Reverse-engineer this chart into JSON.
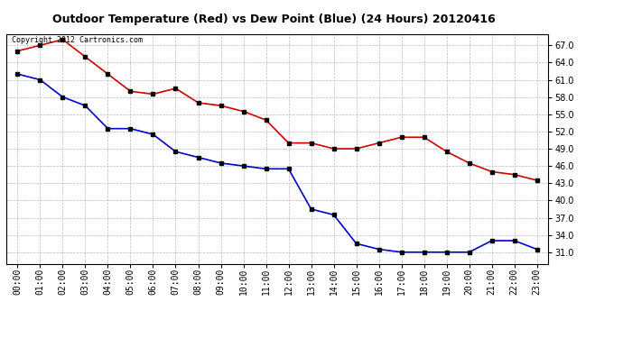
{
  "title": "Outdoor Temperature (Red) vs Dew Point (Blue) (24 Hours) 20120416",
  "copyright_text": "Copyright 2012 Cartronics.com",
  "x_labels": [
    "00:00",
    "01:00",
    "02:00",
    "03:00",
    "04:00",
    "05:00",
    "06:00",
    "07:00",
    "08:00",
    "09:00",
    "10:00",
    "11:00",
    "12:00",
    "13:00",
    "14:00",
    "15:00",
    "16:00",
    "17:00",
    "18:00",
    "19:00",
    "20:00",
    "21:00",
    "22:00",
    "23:00"
  ],
  "temp_red": [
    66.0,
    67.0,
    68.0,
    65.0,
    62.0,
    59.0,
    58.5,
    59.5,
    57.0,
    56.5,
    55.5,
    54.0,
    50.0,
    50.0,
    49.0,
    49.0,
    50.0,
    51.0,
    51.0,
    48.5,
    46.5,
    45.0,
    44.5,
    43.5
  ],
  "dew_blue": [
    62.0,
    61.0,
    58.0,
    56.5,
    52.5,
    52.5,
    51.5,
    48.5,
    47.5,
    46.5,
    46.0,
    45.5,
    45.5,
    38.5,
    37.5,
    32.5,
    31.5,
    31.0,
    31.0,
    31.0,
    31.0,
    33.0,
    33.0,
    31.5
  ],
  "ylim_min": 29.0,
  "ylim_max": 69.0,
  "yticks": [
    31.0,
    34.0,
    37.0,
    40.0,
    43.0,
    46.0,
    49.0,
    52.0,
    55.0,
    58.0,
    61.0,
    64.0,
    67.0
  ],
  "red_color": "#cc0000",
  "blue_color": "#0000cc",
  "bg_color": "#ffffff",
  "plot_bg_color": "#ffffff",
  "grid_color": "#bbbbbb",
  "marker": "s",
  "marker_color": "#000000",
  "marker_size": 3,
  "line_width": 1.2,
  "title_fontsize": 9,
  "tick_fontsize": 7,
  "copyright_fontsize": 6
}
